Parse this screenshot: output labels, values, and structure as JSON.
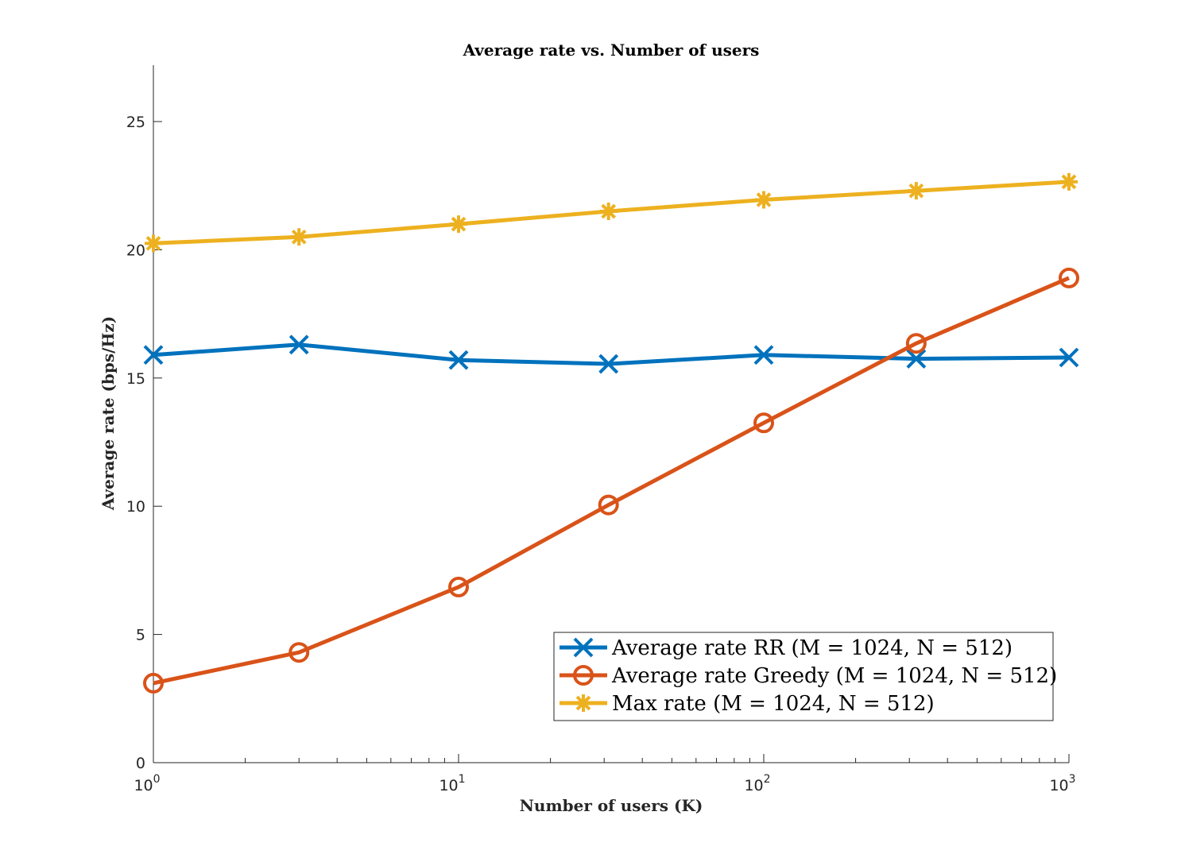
{
  "chart_data": {
    "type": "line",
    "title": "Average rate vs.  Number of users",
    "xlabel": "Number of users (K)",
    "ylabel": "Average rate (bps/Hz)",
    "xscale": "log",
    "xlim": [
      1,
      1000
    ],
    "ylim": [
      0,
      27.2
    ],
    "yticks": [
      0,
      5,
      10,
      15,
      20,
      25
    ],
    "xticks": [
      1,
      10,
      100,
      1000
    ],
    "xtick_labels": [
      {
        "base": "10",
        "exp": "0"
      },
      {
        "base": "10",
        "exp": "1"
      },
      {
        "base": "10",
        "exp": "2"
      },
      {
        "base": "10",
        "exp": "3"
      }
    ],
    "grid": false,
    "legend_position": "bottom-right",
    "x": [
      1,
      3,
      10,
      31,
      100,
      316,
      1000
    ],
    "series": [
      {
        "name": "Average rate RR (M = 1024, N = 512)",
        "color": "#0072bd",
        "marker": "x",
        "values": [
          15.9,
          16.3,
          15.7,
          15.55,
          15.9,
          15.75,
          15.8
        ]
      },
      {
        "name": "Average rate Greedy (M = 1024, N = 512)",
        "color": "#d95319",
        "marker": "o",
        "values": [
          3.1,
          4.3,
          6.85,
          10.05,
          13.25,
          16.35,
          18.9
        ]
      },
      {
        "name": "Max rate (M = 1024, N = 512)",
        "color": "#edb120",
        "marker": "*",
        "values": [
          20.25,
          20.5,
          21.0,
          21.5,
          21.95,
          22.3,
          22.65
        ]
      }
    ]
  }
}
